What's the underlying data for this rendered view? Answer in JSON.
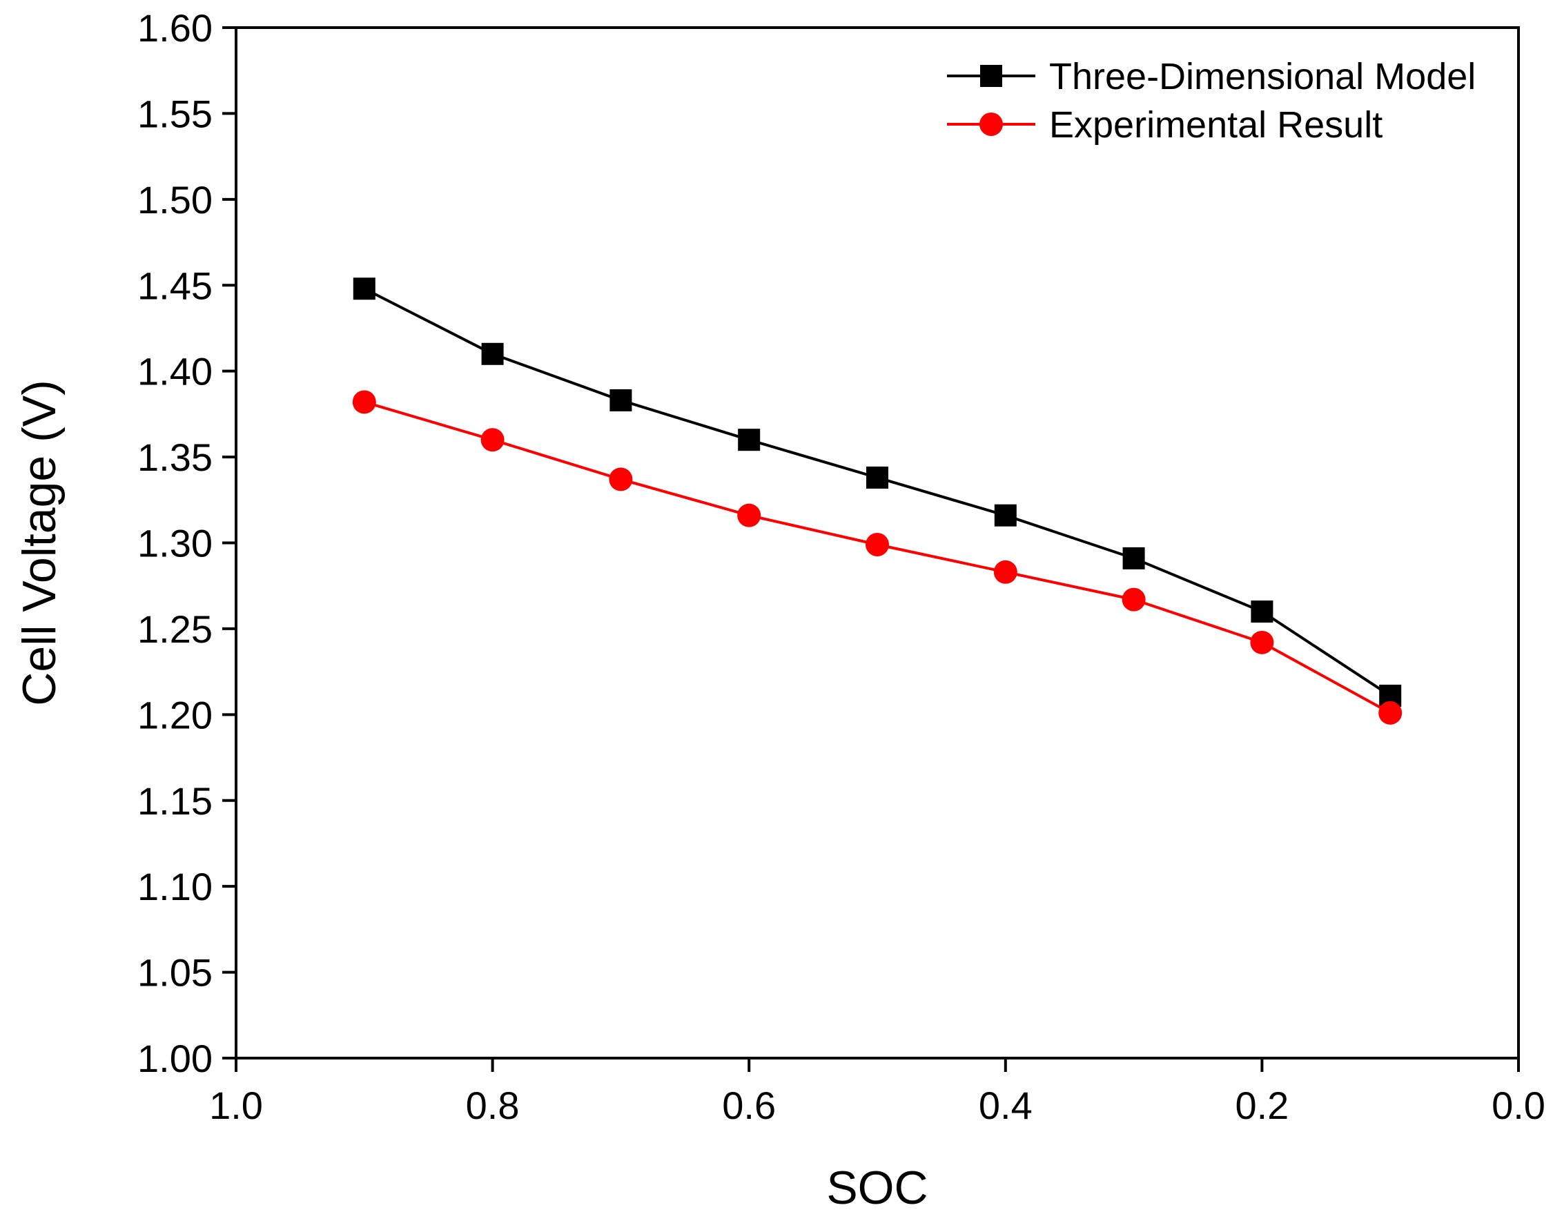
{
  "chart_data": {
    "type": "line",
    "title": "",
    "xlabel": "SOC",
    "ylabel": "Cell Voltage (V)",
    "xlim": [
      1.0,
      0.0
    ],
    "ylim": [
      1.0,
      1.6
    ],
    "x_reversed": true,
    "grid": false,
    "legend_position": "top-right",
    "x_ticks": [
      1.0,
      0.8,
      0.6,
      0.4,
      0.2,
      0.0
    ],
    "x_tick_labels": [
      "1.0",
      "0.8",
      "0.6",
      "0.4",
      "0.2",
      "0.0"
    ],
    "y_ticks": [
      1.0,
      1.05,
      1.1,
      1.15,
      1.2,
      1.25,
      1.3,
      1.35,
      1.4,
      1.45,
      1.5,
      1.55,
      1.6
    ],
    "y_tick_labels": [
      "1.00",
      "1.05",
      "1.10",
      "1.15",
      "1.20",
      "1.25",
      "1.30",
      "1.35",
      "1.40",
      "1.45",
      "1.50",
      "1.55",
      "1.60"
    ],
    "x": [
      0.9,
      0.8,
      0.7,
      0.6,
      0.5,
      0.4,
      0.3,
      0.2,
      0.1
    ],
    "series": [
      {
        "name": "Three-Dimensional Model",
        "key": "three-dimensional-model",
        "color": "#000000",
        "marker": "square",
        "values": [
          1.448,
          1.41,
          1.383,
          1.36,
          1.338,
          1.316,
          1.291,
          1.26,
          1.211
        ]
      },
      {
        "name": "Experimental Result",
        "key": "experimental-result",
        "color": "#ff0000",
        "marker": "circle",
        "values": [
          1.382,
          1.36,
          1.337,
          1.316,
          1.299,
          1.283,
          1.267,
          1.242,
          1.201
        ]
      }
    ]
  }
}
